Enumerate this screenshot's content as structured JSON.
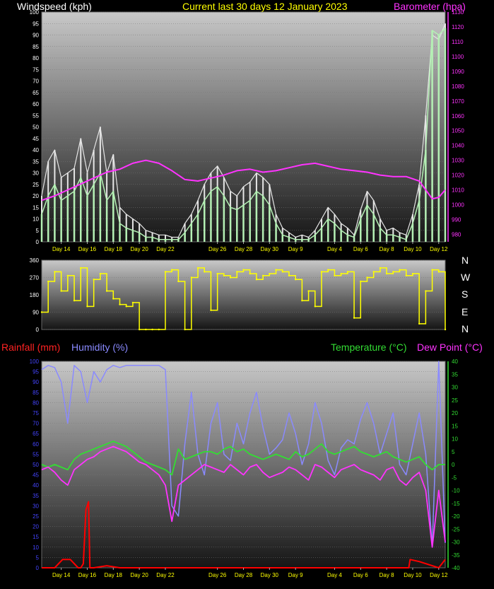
{
  "header": {
    "wind_title": "Windspeed (kph)",
    "center_title": "Current last 30 days 12 January 2023",
    "baro_title": "Barometer (hpa)",
    "rain_title": "Rainfall (mm)",
    "hum_title": "Humidity (%)",
    "temp_title": "Temperature (°C)",
    "dew_title": "Dew Point (°C)"
  },
  "colors": {
    "wind_gust": "#e6e6e6",
    "wind_avg": "#b4f0b4",
    "barometer": "#ff33ff",
    "direction": "#ffff00",
    "rain": "#ff0000",
    "humidity": "#8a8aff",
    "temperature": "#33dd33",
    "dewpoint": "#ff33ff",
    "tick_x": "#ffff00",
    "axis_left_bottom": "#4444ff",
    "axis_right_bottom": "#33dd33",
    "compass": "#ffffff"
  },
  "compass_labels": [
    "N",
    "W",
    "S",
    "E",
    "N"
  ],
  "chart_data": [
    {
      "type": "line",
      "name": "wind-barometer",
      "title": "Current last 30 days 12 January 2023",
      "ylabel": "Windspeed (kph)",
      "y2label": "Barometer (hpa)",
      "ylim": [
        0,
        100
      ],
      "y2lim": [
        975,
        1130
      ],
      "y_ticks": [
        0,
        5,
        10,
        15,
        20,
        25,
        30,
        35,
        40,
        45,
        50,
        55,
        60,
        65,
        70,
        75,
        80,
        85,
        90,
        95,
        100
      ],
      "y2_ticks": [
        980,
        990,
        1000,
        1010,
        1020,
        1030,
        1040,
        1050,
        1060,
        1070,
        1080,
        1090,
        1100,
        1110,
        1120,
        1130
      ],
      "x_ticks": [
        "Day 14",
        "Day 16",
        "Day 18",
        "Day 20",
        "Day 22",
        "Day 26",
        "Day 28",
        "Day 30",
        "Day 9",
        "Day 4",
        "Day 6",
        "Day 8",
        "Day 10",
        "Day 12"
      ],
      "x_tick_pos": [
        1.5,
        3.5,
        5.5,
        7.5,
        9.5,
        13.5,
        15.5,
        17.5,
        19.5,
        22.5,
        24.5,
        26.5,
        28.5,
        30.5
      ],
      "x_range": [
        0,
        31
      ],
      "series": [
        {
          "name": "Windspeed (kph)",
          "x": [
            0,
            0.5,
            1,
            1.5,
            2,
            2.5,
            3,
            3.5,
            4,
            4.5,
            5,
            5.5,
            6,
            6.5,
            7,
            7.5,
            8,
            8.5,
            9,
            9.5,
            10,
            10.5,
            11,
            11.5,
            12,
            12.5,
            13,
            13.5,
            14,
            14.5,
            15,
            15.5,
            16,
            16.5,
            17,
            17.5,
            18,
            18.5,
            19,
            19.5,
            20,
            20.5,
            21,
            21.5,
            22,
            22.5,
            23,
            23.5,
            24,
            24.5,
            25,
            25.5,
            26,
            26.5,
            27,
            27.5,
            28,
            28.5,
            29,
            29.5,
            30,
            30.5,
            31
          ],
          "values": [
            20,
            35,
            40,
            28,
            30,
            32,
            45,
            30,
            40,
            50,
            30,
            38,
            15,
            12,
            10,
            8,
            5,
            4,
            3,
            3,
            2,
            2,
            8,
            12,
            18,
            25,
            30,
            33,
            28,
            22,
            20,
            24,
            26,
            30,
            28,
            25,
            12,
            6,
            4,
            2,
            3,
            2,
            5,
            10,
            15,
            12,
            8,
            6,
            3,
            14,
            22,
            18,
            10,
            5,
            6,
            4,
            3,
            12,
            25,
            55,
            90,
            88,
            95
          ]
        },
        {
          "name": "Wind average",
          "x": [
            0,
            0.5,
            1,
            1.5,
            2,
            2.5,
            3,
            3.5,
            4,
            4.5,
            5,
            5.5,
            6,
            6.5,
            7,
            7.5,
            8,
            8.5,
            9,
            9.5,
            10,
            10.5,
            11,
            11.5,
            12,
            12.5,
            13,
            13.5,
            14,
            14.5,
            15,
            15.5,
            16,
            16.5,
            17,
            17.5,
            18,
            18.5,
            19,
            19.5,
            20,
            20.5,
            21,
            21.5,
            22,
            22.5,
            23,
            23.5,
            24,
            24.5,
            25,
            25.5,
            26,
            26.5,
            27,
            27.5,
            28,
            28.5,
            29,
            29.5,
            30,
            30.5,
            31
          ],
          "values": [
            12,
            20,
            25,
            18,
            20,
            22,
            28,
            20,
            25,
            30,
            18,
            22,
            8,
            6,
            5,
            4,
            2,
            2,
            1,
            1,
            1,
            1,
            4,
            8,
            12,
            18,
            22,
            24,
            20,
            15,
            14,
            16,
            18,
            22,
            20,
            16,
            8,
            3,
            2,
            1,
            1,
            1,
            3,
            6,
            10,
            8,
            5,
            3,
            2,
            10,
            16,
            12,
            6,
            3,
            3,
            2,
            1,
            8,
            18,
            40,
            92,
            90,
            93
          ]
        },
        {
          "name": "Barometer (hpa)",
          "axis": "y2",
          "x": [
            0,
            1,
            2,
            3,
            4,
            5,
            6,
            7,
            8,
            9,
            10,
            11,
            12,
            13,
            14,
            15,
            16,
            17,
            18,
            19,
            20,
            21,
            22,
            23,
            24,
            25,
            26,
            27,
            28,
            29,
            30,
            30.5,
            31
          ],
          "values": [
            1003,
            1006,
            1010,
            1014,
            1018,
            1022,
            1024,
            1028,
            1030,
            1028,
            1023,
            1017,
            1016,
            1018,
            1020,
            1023,
            1024,
            1022,
            1023,
            1025,
            1027,
            1028,
            1026,
            1024,
            1023,
            1022,
            1020,
            1019,
            1019,
            1016,
            1004,
            1005,
            1010
          ]
        }
      ]
    },
    {
      "type": "line",
      "name": "wind-direction",
      "ylim": [
        0,
        360
      ],
      "y_ticks": [
        0,
        90,
        180,
        270,
        360
      ],
      "x_range": [
        0,
        31
      ],
      "series": [
        {
          "name": "Wind direction",
          "x": [
            0,
            0.5,
            1,
            1.5,
            2,
            2.5,
            3,
            3.5,
            4,
            4.5,
            5,
            5.5,
            6,
            6.5,
            7,
            7.5,
            8,
            8.5,
            9,
            9.5,
            10,
            10.5,
            11,
            11.5,
            12,
            12.5,
            13,
            13.5,
            14,
            14.5,
            15,
            15.5,
            16,
            16.5,
            17,
            17.5,
            18,
            18.5,
            19,
            19.5,
            20,
            20.5,
            21,
            21.5,
            22,
            22.5,
            23,
            23.5,
            24,
            24.5,
            25,
            25.5,
            26,
            26.5,
            27,
            27.5,
            28,
            28.5,
            29,
            29.5,
            30,
            30.5,
            31
          ],
          "values": [
            90,
            250,
            300,
            200,
            280,
            150,
            320,
            120,
            260,
            290,
            200,
            160,
            130,
            120,
            140,
            0,
            0,
            0,
            0,
            300,
            310,
            250,
            0,
            270,
            320,
            300,
            100,
            290,
            280,
            270,
            300,
            310,
            290,
            260,
            280,
            290,
            310,
            300,
            280,
            260,
            150,
            200,
            120,
            300,
            310,
            280,
            290,
            300,
            60,
            250,
            270,
            300,
            320,
            290,
            300,
            310,
            280,
            290,
            30,
            200,
            310,
            300,
            0
          ]
        }
      ]
    },
    {
      "type": "line",
      "name": "rain-humidity-temperature",
      "ylabel": "Rainfall (mm)",
      "y_ticks": [
        0,
        5,
        10,
        15,
        20,
        25,
        30,
        35,
        40,
        45,
        50,
        55,
        60,
        65,
        70,
        75,
        80,
        85,
        90,
        95,
        100
      ],
      "ylim": [
        0,
        100
      ],
      "y2lim": [
        -40,
        40
      ],
      "y2_ticks": [
        -40,
        -35,
        -30,
        -25,
        -20,
        -15,
        -10,
        -5,
        0,
        5,
        10,
        15,
        20,
        25,
        30,
        35,
        40
      ],
      "x_ticks": [
        "Day 14",
        "Day 16",
        "Day 18",
        "Day 20",
        "Day 22",
        "Day 26",
        "Day 28",
        "Day 30",
        "Day 9",
        "Day 4",
        "Day 6",
        "Day 8",
        "Day 10",
        "Day 12"
      ],
      "x_tick_pos": [
        1.5,
        3.5,
        5.5,
        7.5,
        9.5,
        13.5,
        15.5,
        17.5,
        19.5,
        22.5,
        24.5,
        26.5,
        28.5,
        30.5
      ],
      "x_range": [
        0,
        31
      ],
      "series": [
        {
          "name": "Rainfall (mm)",
          "x": [
            0,
            1,
            1.6,
            2.2,
            2.8,
            3.0,
            3.2,
            3.4,
            3.6,
            3.7,
            4.0,
            5.0,
            6.0,
            7.0,
            8.0,
            9.0,
            10,
            14,
            18,
            22,
            26,
            28.2,
            28.3,
            29,
            30.5,
            31
          ],
          "values": [
            0,
            0,
            4,
            4,
            0,
            0,
            2,
            28,
            32,
            0,
            0,
            1,
            0,
            0,
            0,
            0,
            0,
            0,
            0,
            0,
            0,
            0,
            4,
            3,
            0,
            4
          ]
        },
        {
          "name": "Humidity (%)",
          "x": [
            0,
            0.5,
            1,
            1.5,
            2,
            2.5,
            3,
            3.5,
            4,
            4.5,
            5,
            5.5,
            6,
            6.5,
            7,
            7.5,
            8,
            8.5,
            9,
            9.5,
            10,
            10.5,
            11,
            11.5,
            12,
            12.5,
            13,
            13.5,
            14,
            14.5,
            15,
            15.5,
            16,
            16.5,
            17,
            17.5,
            18,
            18.5,
            19,
            19.5,
            20,
            20.5,
            21,
            21.5,
            22,
            22.5,
            23,
            23.5,
            24,
            24.5,
            25,
            25.5,
            26,
            26.5,
            27,
            27.5,
            28,
            28.5,
            29,
            29.5,
            30,
            30.5,
            31
          ],
          "values": [
            96,
            98,
            97,
            90,
            70,
            98,
            95,
            80,
            95,
            90,
            96,
            98,
            97,
            98,
            98,
            98,
            98,
            98,
            98,
            96,
            30,
            25,
            60,
            85,
            55,
            45,
            70,
            80,
            55,
            52,
            70,
            60,
            75,
            85,
            68,
            55,
            58,
            62,
            75,
            65,
            50,
            60,
            80,
            70,
            52,
            45,
            58,
            62,
            60,
            72,
            80,
            70,
            55,
            65,
            75,
            50,
            45,
            60,
            75,
            55,
            10,
            100,
            12
          ]
        },
        {
          "name": "Temperature (°C)",
          "axis": "y2",
          "x": [
            0,
            0.5,
            1,
            1.5,
            2,
            2.5,
            3,
            3.5,
            4,
            4.5,
            5,
            5.5,
            6,
            6.5,
            7,
            7.5,
            8,
            8.5,
            9,
            9.5,
            10,
            10.5,
            11,
            11.5,
            12,
            12.5,
            13,
            13.5,
            14,
            14.5,
            15,
            15.5,
            16,
            16.5,
            17,
            17.5,
            18,
            18.5,
            19,
            19.5,
            20,
            20.5,
            21,
            21.5,
            22,
            22.5,
            23,
            23.5,
            24,
            24.5,
            25,
            25.5,
            26,
            26.5,
            27,
            27.5,
            28,
            28.5,
            29,
            29.5,
            30,
            30.5,
            31
          ],
          "values": [
            0,
            -1,
            0,
            -1,
            -2,
            2,
            4,
            5,
            6,
            7,
            8,
            9,
            8,
            7,
            5,
            3,
            1,
            0,
            -1,
            -2,
            -4,
            6,
            2,
            3,
            4,
            5,
            5,
            4,
            6,
            7,
            5,
            6,
            4,
            3,
            2,
            3,
            4,
            3,
            2,
            5,
            3,
            4,
            6,
            8,
            5,
            4,
            5,
            6,
            7,
            5,
            4,
            3,
            4,
            5,
            3,
            2,
            1,
            2,
            3,
            0,
            -2,
            0,
            0
          ]
        },
        {
          "name": "Dew Point (°C)",
          "axis": "y2",
          "x": [
            0,
            0.5,
            1,
            1.5,
            2,
            2.5,
            3,
            3.5,
            4,
            4.5,
            5,
            5.5,
            6,
            6.5,
            7,
            7.5,
            8,
            8.5,
            9,
            9.5,
            10,
            10.5,
            11,
            11.5,
            12,
            12.5,
            13,
            13.5,
            14,
            14.5,
            15,
            15.5,
            16,
            16.5,
            17,
            17.5,
            18,
            18.5,
            19,
            19.5,
            20,
            20.5,
            21,
            21.5,
            22,
            22.5,
            23,
            23.5,
            24,
            24.5,
            25,
            25.5,
            26,
            26.5,
            27,
            27.5,
            28,
            28.5,
            29,
            29.5,
            30,
            30.5,
            31
          ],
          "values": [
            -2,
            -1,
            -3,
            -6,
            -8,
            -2,
            0,
            2,
            3,
            5,
            6,
            7,
            6,
            5,
            3,
            1,
            0,
            -2,
            -4,
            -8,
            -22,
            -8,
            -6,
            -4,
            -2,
            0,
            -1,
            -2,
            -3,
            0,
            -2,
            -4,
            -1,
            0,
            -3,
            -5,
            -4,
            -3,
            -1,
            -2,
            -4,
            -6,
            0,
            -1,
            -3,
            -5,
            -2,
            -1,
            0,
            -2,
            -3,
            -4,
            -6,
            -2,
            -1,
            -6,
            -8,
            -5,
            -3,
            -10,
            -32,
            -10,
            -30
          ]
        }
      ]
    }
  ]
}
